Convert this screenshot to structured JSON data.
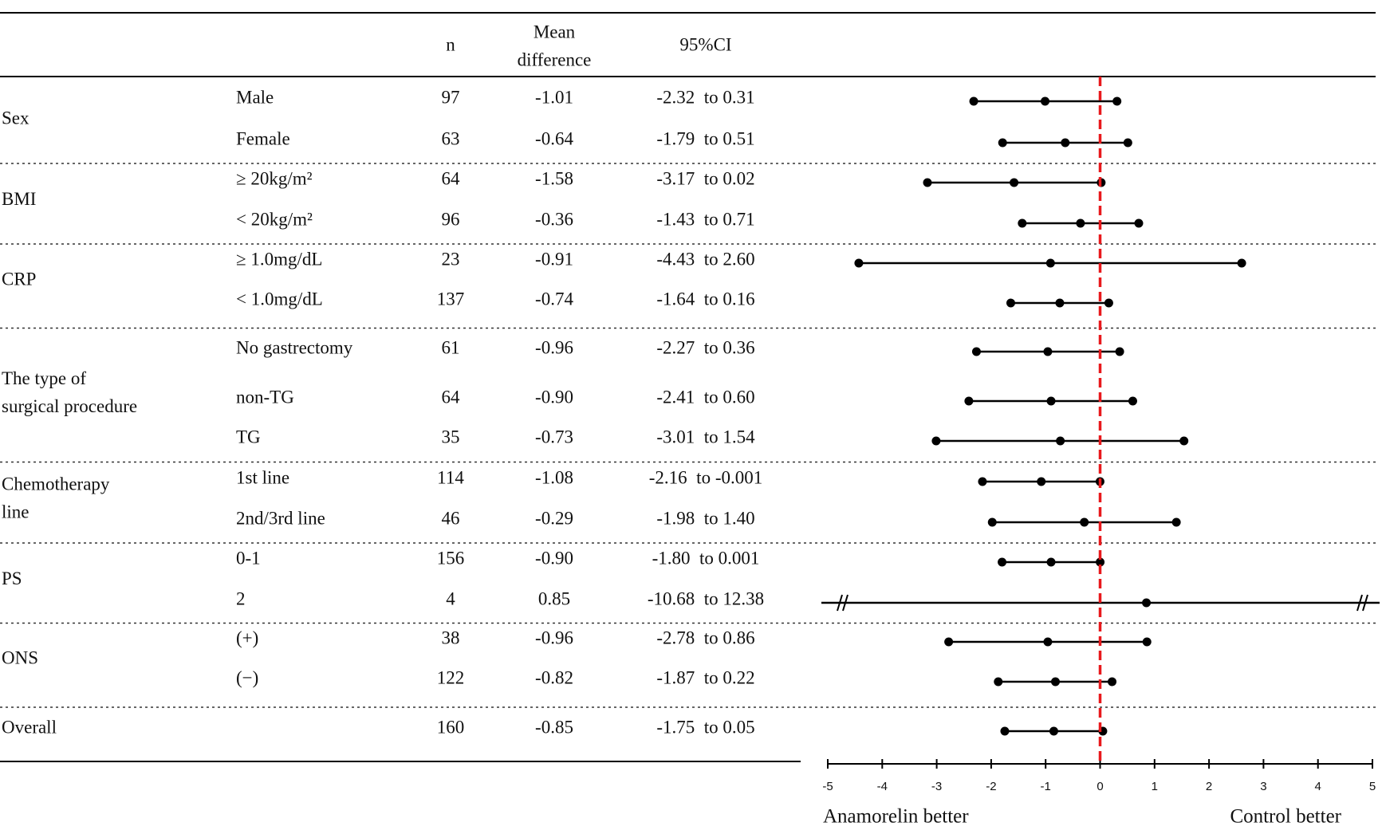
{
  "table": {
    "headers": [
      "n",
      [
        "Mean",
        "difference"
      ],
      "95%CI"
    ]
  },
  "chart_data": {
    "type": "forest",
    "xlim": [
      -5,
      5
    ],
    "xticks": [
      -5,
      -4,
      -3,
      -2,
      -1,
      0,
      1,
      2,
      3,
      4,
      5
    ],
    "reference_line": 0,
    "reference_color": "#e8191c",
    "color": "#000000",
    "left_label": "Anamorelin better",
    "right_label": "Control better",
    "groups": [
      {
        "name": [
          "Sex"
        ],
        "rows": [
          {
            "label": "Male",
            "n": 97,
            "mean": -1.01,
            "mean_label": "-1.01",
            "ci_low": -2.32,
            "ci_high": 0.31,
            "ci_label": "-2.32  to 0.31"
          },
          {
            "label": "Female",
            "n": 63,
            "mean": -0.64,
            "mean_label": "-0.64",
            "ci_low": -1.79,
            "ci_high": 0.51,
            "ci_label": "-1.79  to 0.51"
          }
        ]
      },
      {
        "name": [
          "BMI"
        ],
        "rows": [
          {
            "label": "≥ 20kg/m²",
            "n": 64,
            "mean": -1.58,
            "mean_label": "-1.58",
            "ci_low": -3.17,
            "ci_high": 0.02,
            "ci_label": "-3.17  to 0.02"
          },
          {
            "label": "< 20kg/m²",
            "n": 96,
            "mean": -0.36,
            "mean_label": "-0.36",
            "ci_low": -1.43,
            "ci_high": 0.71,
            "ci_label": "-1.43  to 0.71"
          }
        ]
      },
      {
        "name": [
          "CRP"
        ],
        "rows": [
          {
            "label": "≥ 1.0mg/dL",
            "n": 23,
            "mean": -0.91,
            "mean_label": "-0.91",
            "ci_low": -4.43,
            "ci_high": 2.6,
            "ci_label": "-4.43  to 2.60"
          },
          {
            "label": "< 1.0mg/dL",
            "n": 137,
            "mean": -0.74,
            "mean_label": "-0.74",
            "ci_low": -1.64,
            "ci_high": 0.16,
            "ci_label": "-1.64  to 0.16"
          }
        ]
      },
      {
        "name": [
          "The type of",
          "surgical  procedure"
        ],
        "rows": [
          {
            "label": "No gastrectomy",
            "n": 61,
            "mean": -0.96,
            "mean_label": "-0.96",
            "ci_low": -2.27,
            "ci_high": 0.36,
            "ci_label": "-2.27  to 0.36"
          },
          {
            "label": "non-TG",
            "n": 64,
            "mean": -0.9,
            "mean_label": "-0.90",
            "ci_low": -2.41,
            "ci_high": 0.6,
            "ci_label": "-2.41  to 0.60"
          },
          {
            "label": "TG",
            "n": 35,
            "mean": -0.73,
            "mean_label": "-0.73",
            "ci_low": -3.01,
            "ci_high": 1.54,
            "ci_label": "-3.01  to 1.54"
          }
        ]
      },
      {
        "name": [
          "Chemotherapy",
          "line"
        ],
        "rows": [
          {
            "label": "1st line",
            "n": 114,
            "mean": -1.08,
            "mean_label": "-1.08",
            "ci_low": -2.16,
            "ci_high": -0.001,
            "ci_label": "-2.16  to -0.001"
          },
          {
            "label": "2nd/3rd line",
            "n": 46,
            "mean": -0.29,
            "mean_label": "-0.29",
            "ci_low": -1.98,
            "ci_high": 1.4,
            "ci_label": "-1.98  to 1.40"
          }
        ]
      },
      {
        "name": [
          "PS"
        ],
        "rows": [
          {
            "label": "0-1",
            "n": 156,
            "mean": -0.9,
            "mean_label": "-0.90",
            "ci_low": -1.8,
            "ci_high": 0.001,
            "ci_label": "-1.80  to 0.001"
          },
          {
            "label": "2",
            "n": 4,
            "mean": 0.85,
            "mean_label": "0.85",
            "ci_low": -10.68,
            "ci_high": 12.38,
            "ci_label": "-10.68  to 12.38"
          }
        ]
      },
      {
        "name": [
          "ONS"
        ],
        "rows": [
          {
            "label": "(+)",
            "n": 38,
            "mean": -0.96,
            "mean_label": "-0.96",
            "ci_low": -2.78,
            "ci_high": 0.86,
            "ci_label": "-2.78  to 0.86"
          },
          {
            "label": "(−)",
            "n": 122,
            "mean": -0.82,
            "mean_label": "-0.82",
            "ci_low": -1.87,
            "ci_high": 0.22,
            "ci_label": "-1.87  to 0.22"
          }
        ]
      },
      {
        "name": [
          "Overall"
        ],
        "rows": [
          {
            "n": 160,
            "mean": -0.85,
            "mean_label": "-0.85",
            "ci_low": -1.75,
            "ci_high": 0.05,
            "ci_label": "-1.75  to 0.05"
          }
        ]
      }
    ]
  }
}
